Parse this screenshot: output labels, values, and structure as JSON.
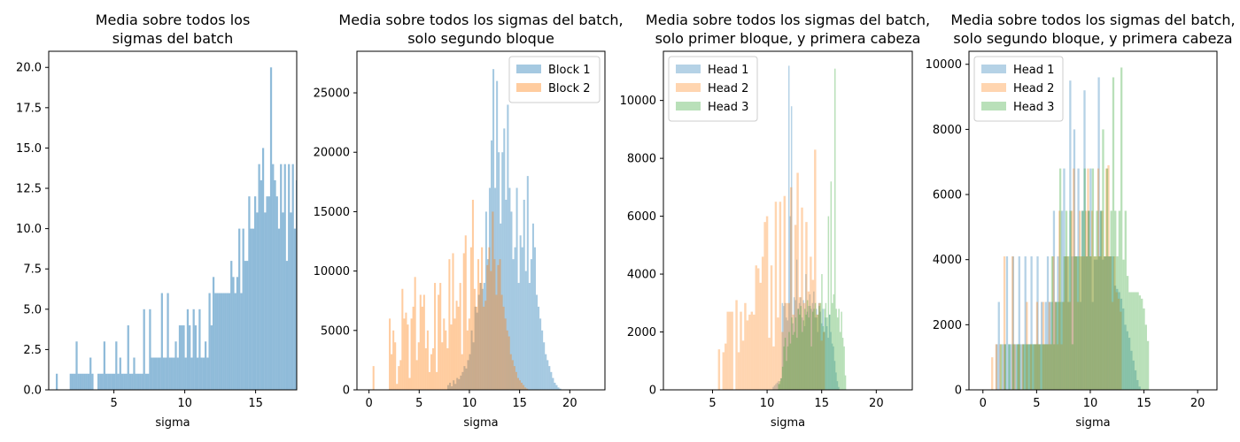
{
  "chart_data": [
    {
      "type": "bar",
      "title_lines": [
        "Media sobre todos los",
        "sigmas del batch"
      ],
      "xlabel": "sigma",
      "xlim": [
        0.4,
        17.9
      ],
      "ylim": [
        0,
        21
      ],
      "xticks": [
        "5",
        "10",
        "15"
      ],
      "xtick_values": [
        5,
        10,
        15
      ],
      "yticks": [
        "0.0",
        "2.5",
        "5.0",
        "7.5",
        "10.0",
        "12.5",
        "15.0",
        "17.5",
        "20.0"
      ],
      "ytick_values": [
        0,
        2.5,
        5,
        7.5,
        10,
        12.5,
        15,
        17.5,
        20
      ],
      "legend": null,
      "series": [
        {
          "color": "#1f77b4",
          "alpha": 0.5,
          "start": 0.9,
          "width": 0.14,
          "values": [
            1,
            0,
            0,
            0,
            0,
            0,
            0,
            1,
            1,
            1,
            3,
            1,
            1,
            1,
            1,
            1,
            1,
            2,
            1,
            0,
            0,
            1,
            1,
            1,
            3,
            1,
            1,
            1,
            1,
            1,
            3,
            1,
            2,
            1,
            1,
            1,
            4,
            1,
            1,
            2,
            1,
            1,
            1,
            1,
            5,
            1,
            1,
            5,
            2,
            2,
            2,
            2,
            2,
            6,
            2,
            2,
            6,
            2,
            2,
            2,
            3,
            2,
            4,
            4,
            4,
            2,
            5,
            4,
            2,
            5,
            4,
            2,
            5,
            2,
            2,
            3,
            2,
            6,
            4,
            7,
            6,
            6,
            6,
            6,
            6,
            6,
            6,
            6,
            8,
            7,
            6,
            7,
            10,
            6,
            10,
            8,
            8,
            12,
            10,
            10,
            12,
            11,
            14,
            13,
            15,
            11,
            12,
            12,
            20,
            14,
            13,
            12,
            10,
            14,
            11,
            14,
            8,
            14,
            11,
            14,
            10,
            13,
            6,
            12,
            13,
            10,
            9,
            6,
            9,
            8,
            4,
            10,
            8,
            9,
            10,
            7,
            5,
            6,
            6,
            3,
            4,
            2,
            2,
            2,
            10,
            2,
            2,
            6,
            2,
            4,
            2,
            2,
            3,
            10,
            2,
            2,
            1,
            2,
            1,
            0,
            3,
            3,
            3,
            2,
            1,
            1,
            0,
            2
          ]
        }
      ]
    },
    {
      "type": "bar",
      "title_lines": [
        "Media sobre todos los sigmas del batch,",
        "solo segundo bloque"
      ],
      "xlabel": "sigma",
      "xlim": [
        -1.2,
        23.5
      ],
      "ylim": [
        0,
        28500
      ],
      "xticks": [
        "0",
        "5",
        "10",
        "15",
        "20"
      ],
      "xtick_values": [
        0,
        5,
        10,
        15,
        20
      ],
      "yticks": [
        "0",
        "5000",
        "10000",
        "15000",
        "20000",
        "25000"
      ],
      "ytick_values": [
        0,
        5000,
        10000,
        15000,
        20000,
        25000
      ],
      "legend": {
        "placement": "top-right",
        "entries": [
          "Block 1",
          "Block 2"
        ]
      },
      "series": [
        {
          "name": "Block 1",
          "color": "#1f77b4",
          "alpha": 0.4,
          "start": 7.8,
          "width": 0.18,
          "values": [
            400,
            600,
            300,
            800,
            500,
            1000,
            900,
            1200,
            1500,
            2000,
            1800,
            2500,
            3000,
            5000,
            4000,
            7000,
            6500,
            8000,
            9000,
            8500,
            9000,
            15000,
            11000,
            17000,
            21000,
            27000,
            17000,
            26000,
            20000,
            14000,
            20000,
            22000,
            16000,
            24000,
            17000,
            15000,
            11000,
            12000,
            17000,
            9000,
            13000,
            12000,
            16000,
            10000,
            18000,
            9000,
            11000,
            14000,
            12000,
            8000,
            7000,
            6000,
            5000,
            4000,
            3000,
            2500,
            2000,
            1500,
            1000,
            600,
            400,
            200,
            100
          ]
        },
        {
          "name": "Block 2",
          "color": "#ff7f0e",
          "alpha": 0.4,
          "start": 0.0,
          "width": 0.18,
          "values": [
            0,
            0,
            2000,
            0,
            0,
            0,
            0,
            0,
            0,
            0,
            0,
            6000,
            3000,
            5000,
            4000,
            500,
            2000,
            2500,
            8500,
            6000,
            6500,
            5500,
            1000,
            6000,
            7000,
            9500,
            2500,
            4000,
            8000,
            7000,
            8000,
            3500,
            5000,
            1500,
            3000,
            3500,
            9000,
            1500,
            8000,
            9000,
            4000,
            6000,
            5000,
            3500,
            11000,
            5500,
            11500,
            6000,
            7500,
            7000,
            9000,
            3000,
            11500,
            13000,
            5000,
            6000,
            12000,
            16000,
            8500,
            7000,
            11000,
            9000,
            12000,
            7000,
            7500,
            10500,
            12000,
            10000,
            15000,
            11000,
            8000,
            10500,
            11000,
            8000,
            7000,
            6000,
            5000,
            4500,
            3000,
            2500,
            2000,
            1500,
            1000,
            800,
            600,
            400,
            200,
            100
          ]
        }
      ]
    },
    {
      "type": "bar",
      "title_lines": [
        "Media sobre todos los sigmas del batch,",
        "solo primer bloque, y primera cabeza"
      ],
      "xlabel": "sigma",
      "xlim": [
        0.5,
        23.3
      ],
      "ylim": [
        0,
        11700
      ],
      "xticks": [
        "5",
        "10",
        "15",
        "20"
      ],
      "xtick_values": [
        5,
        10,
        15,
        20
      ],
      "yticks": [
        "0",
        "2000",
        "4000",
        "6000",
        "8000",
        "10000"
      ],
      "ytick_values": [
        0,
        2000,
        4000,
        6000,
        8000,
        10000
      ],
      "legend": {
        "placement": "top-left",
        "entries": [
          "Head 1",
          "Head 2",
          "Head 3"
        ]
      },
      "series": [
        {
          "name": "Head 1",
          "color": "#1f77b4",
          "alpha": 0.33,
          "start": 10.5,
          "width": 0.12,
          "values": [
            100,
            150,
            200,
            250,
            300,
            200,
            400,
            3000,
            2900,
            3000,
            2500,
            2400,
            11200,
            6000,
            9800,
            2300,
            3200,
            3100,
            4500,
            2800,
            3000,
            3200,
            2500,
            3100,
            2200,
            4000,
            2700,
            2900,
            3300,
            2800,
            3000,
            3400,
            2500,
            2800,
            2000,
            3000,
            2700,
            2300,
            2800,
            2000,
            2500,
            2200,
            1800,
            2600,
            2000,
            1600,
            1500,
            1000,
            600,
            300,
            100
          ]
        },
        {
          "name": "Head 2",
          "color": "#ff7f0e",
          "alpha": 0.33,
          "start": 5.5,
          "width": 0.2,
          "values": [
            1400,
            0,
            1300,
            1600,
            2700,
            2700,
            2700,
            0,
            3100,
            1300,
            2700,
            1700,
            3000,
            2400,
            2600,
            2700,
            2600,
            4300,
            4200,
            3700,
            4600,
            5800,
            6000,
            1800,
            4300,
            1500,
            6500,
            2500,
            6500,
            2000,
            6700,
            3000,
            3000,
            7000,
            2600,
            5700,
            7500,
            3200,
            6300,
            3000,
            5800,
            3400,
            4600,
            3800,
            8300,
            2600,
            3000,
            1700,
            2000
          ]
        },
        {
          "name": "Head 3",
          "color": "#2ca02c",
          "alpha": 0.33,
          "start": 11.0,
          "width": 0.12,
          "values": [
            200,
            300,
            400,
            800,
            1500,
            1800,
            1000,
            1500,
            2000,
            1600,
            2500,
            1900,
            2000,
            2500,
            1800,
            2800,
            2600,
            2900,
            2000,
            2400,
            2800,
            2600,
            3100,
            2500,
            2900,
            1500,
            2700,
            2800,
            3000,
            2500,
            2600,
            2900,
            3000,
            4000,
            2200,
            2800,
            3000,
            2500,
            6000,
            2600,
            7200,
            3000,
            3300,
            11100,
            2800,
            2500,
            2800,
            2000,
            2700,
            1800,
            1500,
            500
          ]
        }
      ]
    },
    {
      "type": "bar",
      "title_lines": [
        "Media sobre todos los sigmas del batch,",
        "solo segundo bloque, y primera cabeza"
      ],
      "xlabel": "sigma",
      "xlim": [
        -1.3,
        21.8
      ],
      "ylim": [
        0,
        10400
      ],
      "xticks": [
        "0",
        "5",
        "10",
        "15",
        "20"
      ],
      "xtick_values": [
        0,
        5,
        10,
        15,
        20
      ],
      "yticks": [
        "0",
        "2000",
        "4000",
        "6000",
        "8000",
        "10000"
      ],
      "ytick_values": [
        0,
        2000,
        4000,
        6000,
        8000,
        10000
      ],
      "legend": {
        "placement": "top-left",
        "entries": [
          "Head 1",
          "Head 2",
          "Head 3"
        ]
      },
      "series": [
        {
          "name": "Head 1",
          "color": "#1f77b4",
          "alpha": 0.33,
          "start": 1.2,
          "width": 0.19,
          "values": [
            1400,
            2700,
            0,
            1400,
            1400,
            4100,
            1400,
            1400,
            4100,
            1400,
            1400,
            4100,
            1400,
            1400,
            4100,
            1400,
            1400,
            4100,
            1400,
            1400,
            4100,
            1400,
            2700,
            1400,
            2700,
            4100,
            2700,
            2700,
            5500,
            2700,
            4100,
            2700,
            5500,
            6800,
            4100,
            2700,
            9500,
            4100,
            8000,
            4100,
            6800,
            2700,
            5500,
            9200,
            4100,
            5500,
            6800,
            2700,
            4000,
            4000,
            9600,
            5500,
            4000,
            4100,
            4100,
            4100,
            4100,
            4100,
            3200,
            3100,
            3000,
            2800,
            2500,
            2000,
            1800,
            1600,
            1200,
            900,
            600,
            300,
            100
          ]
        },
        {
          "name": "Head 2",
          "color": "#ff7f0e",
          "alpha": 0.33,
          "start": 0.2,
          "width": 0.19,
          "values": [
            0,
            0,
            0,
            1000,
            0,
            1400,
            0,
            1400,
            0,
            4100,
            0,
            0,
            0,
            4100,
            1400,
            0,
            1400,
            0,
            1400,
            0,
            2700,
            0,
            1400,
            0,
            1400,
            2700,
            1400,
            0,
            2700,
            1400,
            1400,
            2700,
            1400,
            4100,
            2700,
            1400,
            5500,
            1400,
            2700,
            4100,
            4100,
            2700,
            5500,
            6800,
            4100,
            2700,
            5500,
            4100,
            4100,
            5500,
            6800,
            4100,
            5500,
            4100,
            4100,
            6800,
            4100,
            5500,
            4100,
            6800,
            6900,
            4100,
            2700,
            4100,
            3000,
            2800,
            2400
          ]
        },
        {
          "name": "Head 3",
          "color": "#2ca02c",
          "alpha": 0.33,
          "start": 1.6,
          "width": 0.19,
          "values": [
            1400,
            0,
            1400,
            0,
            1400,
            0,
            1400,
            0,
            1400,
            1400,
            0,
            1400,
            1400,
            1400,
            1400,
            1400,
            1400,
            1400,
            1400,
            1400,
            1400,
            1400,
            1400,
            1400,
            1400,
            4100,
            1400,
            2700,
            2700,
            6800,
            2700,
            4100,
            5500,
            4100,
            5500,
            1400,
            4100,
            4100,
            4100,
            4100,
            5500,
            6800,
            4100,
            5500,
            4100,
            6800,
            4100,
            5500,
            4100,
            5500,
            8000,
            4100,
            6800,
            4100,
            5500,
            9600,
            5500,
            4100,
            5500,
            9900,
            4000,
            5500,
            3500,
            3000,
            3000,
            3000,
            3000,
            3000,
            2900,
            2800,
            2500,
            2000,
            1500
          ]
        }
      ]
    }
  ]
}
